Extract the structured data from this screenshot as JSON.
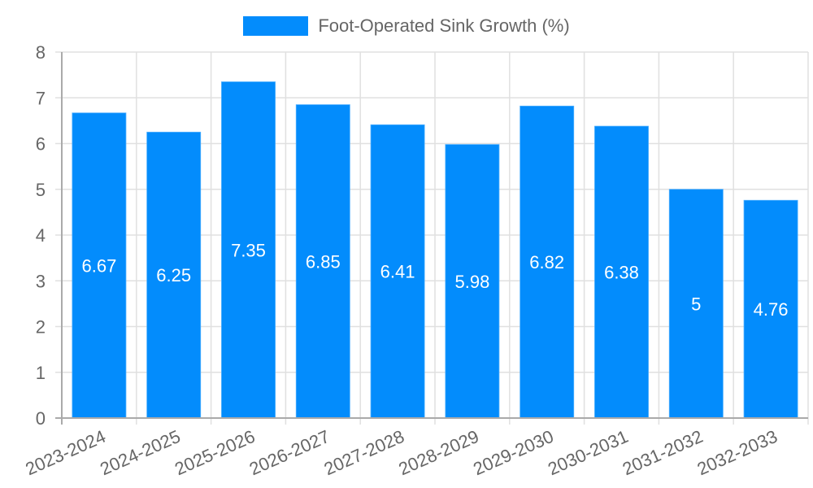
{
  "legend": {
    "label": "Foot-Operated Sink Growth (%)",
    "color": "#038cfc"
  },
  "chart_data": {
    "type": "bar",
    "title": "",
    "xlabel": "",
    "ylabel": "",
    "ylim": [
      0,
      8
    ],
    "yticks": [
      0,
      1,
      2,
      3,
      4,
      5,
      6,
      7,
      8
    ],
    "grid": true,
    "legend_position": "top",
    "categories": [
      "2023-2024",
      "2024-2025",
      "2025-2026",
      "2026-2027",
      "2027-2028",
      "2028-2029",
      "2029-2030",
      "2030-2031",
      "2031-2032",
      "2032-2033"
    ],
    "series": [
      {
        "name": "Foot-Operated Sink Growth (%)",
        "color": "#038cfc",
        "values": [
          6.67,
          6.25,
          7.35,
          6.85,
          6.41,
          5.98,
          6.82,
          6.38,
          5,
          4.76
        ],
        "data_labels": [
          "6.67",
          "6.25",
          "7.35",
          "6.85",
          "6.41",
          "5.98",
          "6.82",
          "6.38",
          "5",
          "4.76"
        ]
      }
    ]
  }
}
